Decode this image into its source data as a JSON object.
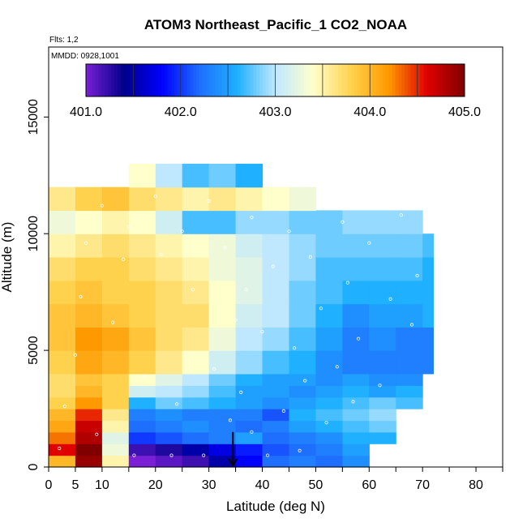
{
  "chart_data": {
    "type": "heatmap",
    "title": "ATOM3 Northeast_Pacific_1 CO2_NOAA",
    "flights_note": "Flts: 1,2",
    "date_note": "MMDD: 0928,1001",
    "xlabel": "Latitude (deg N)",
    "ylabel": "Altitude (m)",
    "xlim": [
      0,
      85
    ],
    "ylim": [
      0,
      18000
    ],
    "xticks": [
      0,
      5,
      10,
      20,
      30,
      40,
      50,
      60,
      70,
      80
    ],
    "yticks": [
      0,
      5000,
      10000,
      15000
    ],
    "colorbar": {
      "ticks": [
        "401.0",
        "402.0",
        "403.0",
        "404.0",
        "405.0"
      ],
      "range": [
        401.0,
        405.0
      ],
      "colors": [
        "#7a1fd6",
        "#00008b",
        "#0000ff",
        "#1f6fff",
        "#1fb0ff",
        "#bfe8ff",
        "#ffffcc",
        "#ffd24d",
        "#ff9900",
        "#e00000",
        "#800000"
      ]
    },
    "marker": {
      "latitude": 34.5,
      "altitude_top": 1500
    },
    "field": {
      "lat_bins": [
        0,
        5,
        10,
        15,
        20,
        25,
        30,
        35,
        40,
        45,
        50,
        55,
        60,
        65,
        70
      ],
      "lat_edges": [
        0,
        5,
        10,
        15,
        20,
        25,
        30,
        35,
        40,
        45,
        50,
        55,
        60,
        65,
        70,
        72
      ],
      "alt_edges": [
        0,
        500,
        1000,
        1500,
        2000,
        2500,
        3000,
        3500,
        4000,
        5000,
        6000,
        7000,
        8000,
        9000,
        10000,
        11000,
        12000,
        13000
      ],
      "values": [
        [
          404.0,
          404.9,
          403.5,
          401.0,
          401.1,
          401.2,
          401.5,
          401.8,
          402.2,
          402.3,
          402.2,
          402.4,
          null,
          null,
          null
        ],
        [
          404.6,
          405.0,
          403.3,
          401.2,
          401.3,
          401.5,
          401.7,
          401.9,
          402.1,
          402.2,
          402.3,
          402.5,
          null,
          null,
          null
        ],
        [
          404.3,
          404.8,
          403.2,
          402.0,
          402.1,
          402.2,
          402.3,
          402.5,
          402.2,
          402.3,
          402.4,
          402.6,
          402.6,
          null,
          null
        ],
        [
          404.1,
          404.7,
          403.5,
          402.2,
          402.3,
          402.4,
          402.3,
          402.2,
          402.3,
          402.5,
          402.6,
          402.7,
          402.8,
          null,
          null
        ],
        [
          404.0,
          404.5,
          403.6,
          402.3,
          402.4,
          402.3,
          402.3,
          402.3,
          402.1,
          402.6,
          402.7,
          402.8,
          402.9,
          null,
          null
        ],
        [
          403.8,
          404.2,
          403.8,
          402.6,
          402.8,
          402.7,
          402.6,
          402.5,
          402.4,
          402.5,
          402.6,
          402.7,
          402.8,
          402.7,
          null
        ],
        [
          403.7,
          404.0,
          403.8,
          403.1,
          403.0,
          402.9,
          402.7,
          402.5,
          402.5,
          402.4,
          402.5,
          402.6,
          402.5,
          402.6,
          null
        ],
        [
          403.7,
          403.9,
          403.8,
          403.4,
          403.2,
          403.0,
          402.8,
          402.6,
          402.5,
          402.5,
          402.4,
          402.5,
          402.4,
          402.4,
          null
        ],
        [
          403.8,
          404.1,
          404.0,
          403.8,
          403.6,
          403.4,
          403.1,
          402.9,
          402.7,
          402.6,
          402.4,
          402.3,
          402.3,
          402.3,
          402.3
        ],
        [
          403.9,
          404.2,
          404.1,
          403.9,
          403.7,
          403.6,
          403.3,
          403.0,
          402.9,
          402.7,
          402.5,
          402.3,
          402.4,
          402.3,
          402.3
        ],
        [
          403.9,
          404.0,
          403.9,
          403.8,
          403.7,
          403.7,
          403.4,
          403.1,
          403.0,
          402.8,
          402.6,
          402.4,
          402.5,
          402.5,
          402.6
        ],
        [
          403.8,
          403.9,
          403.8,
          403.8,
          403.7,
          403.6,
          403.4,
          403.2,
          403.0,
          402.8,
          402.7,
          402.6,
          402.6,
          402.6,
          402.6
        ],
        [
          403.7,
          403.8,
          403.8,
          403.7,
          403.6,
          403.5,
          403.3,
          403.2,
          403.0,
          402.9,
          402.7,
          402.7,
          402.7,
          402.7,
          402.6
        ],
        [
          403.5,
          403.6,
          403.7,
          403.6,
          403.5,
          403.4,
          403.3,
          403.1,
          403.0,
          402.9,
          402.8,
          402.8,
          402.8,
          402.8,
          402.7
        ],
        [
          403.3,
          403.4,
          403.5,
          403.4,
          403.1,
          402.7,
          402.7,
          402.9,
          402.9,
          402.8,
          402.8,
          402.9,
          402.9,
          402.9,
          null
        ],
        [
          403.6,
          403.8,
          403.9,
          403.7,
          403.6,
          403.5,
          403.6,
          403.5,
          403.4,
          403.3,
          null,
          null,
          null,
          null,
          null
        ],
        [
          null,
          null,
          null,
          403.4,
          403.0,
          402.7,
          402.8,
          402.6,
          null,
          null,
          null,
          null,
          null,
          null,
          null
        ]
      ]
    },
    "sample_points": [
      [
        2,
        800
      ],
      [
        3,
        2600
      ],
      [
        5,
        4800
      ],
      [
        6,
        7300
      ],
      [
        7,
        9600
      ],
      [
        9,
        1400
      ],
      [
        12,
        6200
      ],
      [
        14,
        8900
      ],
      [
        16,
        500
      ],
      [
        18,
        3900
      ],
      [
        21,
        9100
      ],
      [
        23,
        500
      ],
      [
        24,
        2700
      ],
      [
        27,
        7600
      ],
      [
        29,
        500
      ],
      [
        31,
        4200
      ],
      [
        33,
        9400
      ],
      [
        34,
        2000
      ],
      [
        35,
        6300
      ],
      [
        36,
        3200
      ],
      [
        37,
        7600
      ],
      [
        38,
        1500
      ],
      [
        40,
        5800
      ],
      [
        41,
        500
      ],
      [
        42,
        8600
      ],
      [
        44,
        2400
      ],
      [
        46,
        5100
      ],
      [
        47,
        700
      ],
      [
        48,
        3700
      ],
      [
        49,
        9000
      ],
      [
        51,
        6800
      ],
      [
        52,
        1900
      ],
      [
        54,
        4300
      ],
      [
        55,
        10500
      ],
      [
        56,
        7900
      ],
      [
        57,
        2800
      ],
      [
        58,
        5500
      ],
      [
        60,
        9600
      ],
      [
        62,
        3500
      ],
      [
        64,
        7200
      ],
      [
        66,
        10800
      ],
      [
        68,
        6100
      ],
      [
        69,
        8200
      ],
      [
        45,
        10100
      ],
      [
        38,
        10700
      ],
      [
        30,
        11400
      ],
      [
        25,
        10100
      ],
      [
        20,
        11600
      ],
      [
        15,
        10300
      ],
      [
        10,
        11200
      ]
    ]
  }
}
